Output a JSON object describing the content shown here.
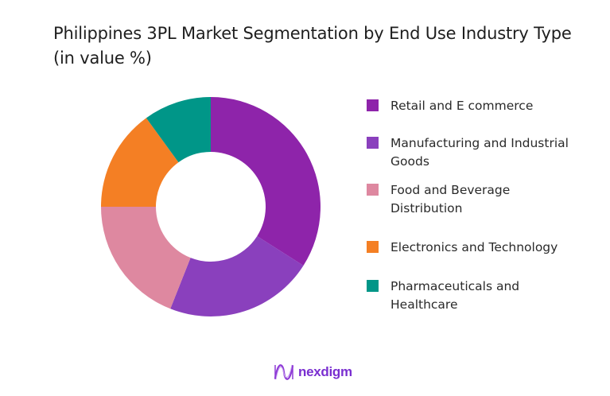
{
  "title": "Philippines 3PL Market Segmentation by End Use Industry Type (in value %)",
  "chart_data": {
    "type": "pie",
    "subtype": "donut",
    "title": "Philippines 3PL Market Segmentation by End Use Industry Type (in value %)",
    "categories": [
      "Retail and E commerce",
      "Manufacturing and Industrial Goods",
      "Food and Beverage Distribution",
      "Electronics and Technology",
      "Pharmaceuticals and Healthcare"
    ],
    "values": [
      34,
      22,
      19,
      15,
      10
    ],
    "unit": "%",
    "colors": [
      "#8e24aa",
      "#8a40bd",
      "#de88a0",
      "#f47f24",
      "#009688"
    ],
    "legend_position": "right",
    "start_angle_deg": 0,
    "direction": "clockwise"
  },
  "legend": {
    "items": [
      {
        "label": "Retail and E commerce",
        "color": "#8e24aa"
      },
      {
        "label": "Manufacturing and Industrial Goods",
        "color": "#8a40bd"
      },
      {
        "label": "Food and Beverage Distribution",
        "color": "#de88a0"
      },
      {
        "label": "Electronics and Technology",
        "color": "#f47f24"
      },
      {
        "label": "Pharmaceuticals and Healthcare",
        "color": "#009688"
      }
    ]
  },
  "branding": {
    "logo_text": "nexdigm",
    "logo_icon": "nexdigm-wave-icon",
    "color": "#7a2fd0"
  }
}
